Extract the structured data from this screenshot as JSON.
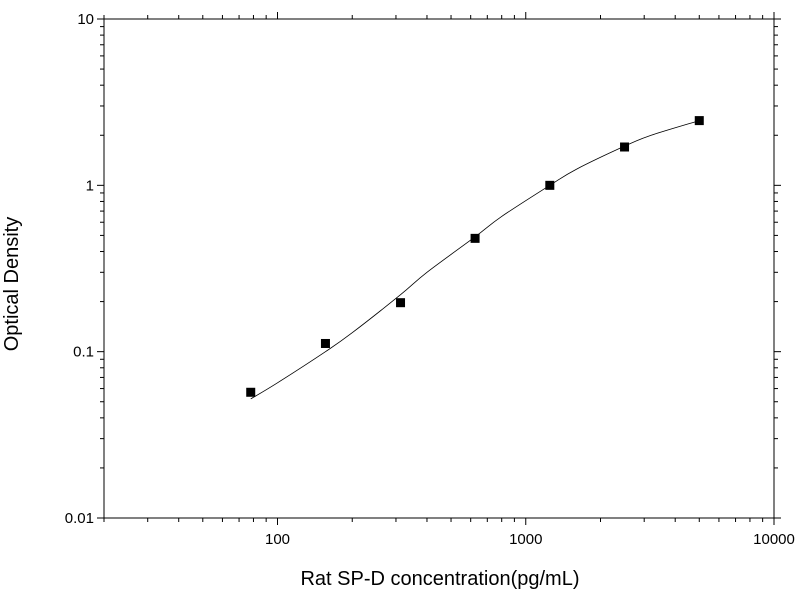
{
  "chart_data": {
    "type": "scatter",
    "title": "",
    "xlabel": "Rat SP-D concentration(pg/mL)",
    "ylabel": "Optical Density",
    "x_scale": "log",
    "y_scale": "log",
    "xlim": [
      20,
      10000
    ],
    "ylim": [
      0.01,
      10
    ],
    "grid": false,
    "legend": "none",
    "x_ticks": [
      {
        "value": 100,
        "label": "100"
      },
      {
        "value": 1000,
        "label": "1000"
      },
      {
        "value": 10000,
        "label": "10000"
      }
    ],
    "y_ticks": [
      {
        "value": 0.01,
        "label": "0.01"
      },
      {
        "value": 0.1,
        "label": "0.1"
      },
      {
        "value": 1,
        "label": "1"
      },
      {
        "value": 10,
        "label": "10"
      }
    ],
    "series": [
      {
        "x": [
          78,
          156,
          313,
          625,
          1250,
          2500,
          5000
        ],
        "y": [
          0.057,
          0.112,
          0.197,
          0.48,
          1.0,
          1.7,
          2.45
        ],
        "marker": "square",
        "color": "#000000"
      }
    ],
    "fit_curve": {
      "x": [
        78,
        100,
        156,
        200,
        313,
        400,
        625,
        800,
        1250,
        1600,
        2500,
        3200,
        5000
      ],
      "y": [
        0.052,
        0.065,
        0.1,
        0.13,
        0.22,
        0.3,
        0.49,
        0.65,
        1.0,
        1.25,
        1.72,
        2.0,
        2.45
      ],
      "color": "#000000"
    }
  }
}
